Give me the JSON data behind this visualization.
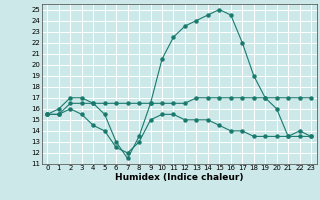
{
  "title": "",
  "xlabel": "Humidex (Indice chaleur)",
  "xlim": [
    -0.5,
    23.5
  ],
  "ylim": [
    11,
    25.5
  ],
  "yticks": [
    11,
    12,
    13,
    14,
    15,
    16,
    17,
    18,
    19,
    20,
    21,
    22,
    23,
    24,
    25
  ],
  "xticks": [
    0,
    1,
    2,
    3,
    4,
    5,
    6,
    7,
    8,
    9,
    10,
    11,
    12,
    13,
    14,
    15,
    16,
    17,
    18,
    19,
    20,
    21,
    22,
    23
  ],
  "bg_color": "#cce8e8",
  "grid_color": "#ffffff",
  "line_color": "#1a7a6e",
  "line1_x": [
    0,
    1,
    2,
    3,
    4,
    5,
    6,
    7,
    8,
    9,
    10,
    11,
    12,
    13,
    14,
    15,
    16,
    17,
    18,
    19,
    20,
    21,
    22,
    23
  ],
  "line1_y": [
    15.5,
    16.0,
    17.0,
    17.0,
    16.5,
    15.5,
    13.0,
    11.5,
    13.5,
    16.5,
    20.5,
    22.5,
    23.5,
    24.0,
    24.5,
    25.0,
    24.5,
    22.0,
    19.0,
    17.0,
    16.0,
    13.5,
    14.0,
    13.5
  ],
  "line2_x": [
    0,
    1,
    2,
    3,
    4,
    5,
    6,
    7,
    8,
    9,
    10,
    11,
    12,
    13,
    14,
    15,
    16,
    17,
    18,
    19,
    20,
    21,
    22,
    23
  ],
  "line2_y": [
    15.5,
    15.5,
    16.5,
    16.5,
    16.5,
    16.5,
    16.5,
    16.5,
    16.5,
    16.5,
    16.5,
    16.5,
    16.5,
    17.0,
    17.0,
    17.0,
    17.0,
    17.0,
    17.0,
    17.0,
    17.0,
    17.0,
    17.0,
    17.0
  ],
  "line3_x": [
    0,
    1,
    2,
    3,
    4,
    5,
    6,
    7,
    8,
    9,
    10,
    11,
    12,
    13,
    14,
    15,
    16,
    17,
    18,
    19,
    20,
    21,
    22,
    23
  ],
  "line3_y": [
    15.5,
    15.5,
    16.0,
    15.5,
    14.5,
    14.0,
    12.5,
    12.0,
    13.0,
    15.0,
    15.5,
    15.5,
    15.0,
    15.0,
    15.0,
    14.5,
    14.0,
    14.0,
    13.5,
    13.5,
    13.5,
    13.5,
    13.5,
    13.5
  ],
  "tick_fontsize": 5.0,
  "xlabel_fontsize": 6.5
}
